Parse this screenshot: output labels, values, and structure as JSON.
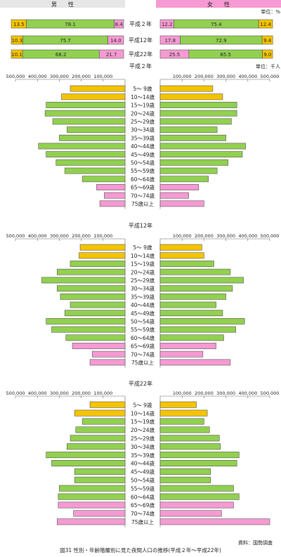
{
  "header": {
    "male_label": "男　　性",
    "female_label": "女　　性",
    "unit_percent": "単位：%",
    "unit_thousand": "単位：千人"
  },
  "colors": {
    "young": "#f5c400",
    "working": "#92d050",
    "elderly": "#f59ad2",
    "male_header": "#e6e6e6",
    "female_header": "#f59ad2",
    "stroke": "#555555"
  },
  "ratio_rows": [
    {
      "year": "平成２年",
      "male": [
        "13.5",
        "78.1",
        "8.4"
      ],
      "female": [
        "12.2",
        "75.4",
        "12.4"
      ]
    },
    {
      "year": "平成12年",
      "male": [
        "10.3",
        "75.7",
        "14.0"
      ],
      "female": [
        "17.8",
        "72.9",
        "9.4"
      ]
    },
    {
      "year": "平成22年",
      "male": [
        "10.1",
        "68.2",
        "21.7"
      ],
      "female": [
        "25.5",
        "65.5",
        "9.0"
      ]
    }
  ],
  "axis": {
    "male_ticks": [
      "500,000",
      "400,000",
      "300,000",
      "200,000",
      "100,000"
    ],
    "female_ticks": [
      "100,000",
      "200,000",
      "300,000",
      "400,000",
      "500,000"
    ]
  },
  "age_groups": [
    "5～ 9歳",
    "10～14歳",
    "15～19歳",
    "20～24歳",
    "25～29歳",
    "30～34歳",
    "35～39歳",
    "40～44歳",
    "45～49歳",
    "50～54歳",
    "55～59歳",
    "60～64歳",
    "65～69歳",
    "70～74歳",
    "75歳以上"
  ],
  "chart_data": [
    {
      "type": "bar",
      "title": "平成２年",
      "categories": [
        "5～ 9歳",
        "10～14歳",
        "15～19歳",
        "20～24歳",
        "25～29歳",
        "30～34歳",
        "35～39歳",
        "40～44歳",
        "45～49歳",
        "50～54歳",
        "55～59歳",
        "60～64歳",
        "65～69歳",
        "70～74歳",
        "75歳以上"
      ],
      "series": [
        {
          "name": "男",
          "values": [
            250000,
            290000,
            360000,
            365000,
            330000,
            265000,
            300000,
            395000,
            360000,
            315000,
            275000,
            195000,
            130000,
            95000,
            115000
          ]
        },
        {
          "name": "女",
          "values": [
            240000,
            285000,
            350000,
            350000,
            325000,
            260000,
            300000,
            390000,
            375000,
            310000,
            260000,
            220000,
            175000,
            130000,
            200000
          ]
        }
      ],
      "xlim": [
        0,
        500000
      ]
    },
    {
      "type": "bar",
      "title": "平成12年",
      "categories": [
        "5～ 9歳",
        "10～14歳",
        "15～19歳",
        "20～24歳",
        "25～29歳",
        "30～34歳",
        "35～39歳",
        "40～44歳",
        "45～49歳",
        "50～54歳",
        "55～59歳",
        "60～64歳",
        "65～69歳",
        "70～74歳",
        "75歳以上"
      ],
      "series": [
        {
          "name": "男",
          "values": [
            205000,
            210000,
            250000,
            310000,
            380000,
            310000,
            295000,
            250000,
            275000,
            360000,
            335000,
            270000,
            240000,
            150000,
            160000
          ]
        },
        {
          "name": "女",
          "values": [
            190000,
            200000,
            245000,
            320000,
            380000,
            330000,
            300000,
            255000,
            285000,
            385000,
            345000,
            290000,
            255000,
            195000,
            320000
          ]
        }
      ],
      "xlim": [
        0,
        500000
      ]
    },
    {
      "type": "bar",
      "title": "平成22年",
      "categories": [
        "5～ 9歳",
        "10～14歳",
        "15～19歳",
        "20～24歳",
        "25～29歳",
        "30～34歳",
        "35～39歳",
        "40～44歳",
        "45～49歳",
        "50～54歳",
        "55～59歳",
        "60～64歳",
        "65～69歳",
        "70～74歳",
        "75歳以上"
      ],
      "series": [
        {
          "name": "男",
          "values": [
            160000,
            230000,
            195000,
            225000,
            250000,
            265000,
            360000,
            335000,
            230000,
            230000,
            300000,
            305000,
            305000,
            235000,
            310000
          ]
        },
        {
          "name": "女",
          "values": [
            165000,
            215000,
            200000,
            225000,
            270000,
            275000,
            360000,
            350000,
            230000,
            230000,
            335000,
            360000,
            335000,
            280000,
            500000
          ]
        }
      ],
      "xlim": [
        0,
        500000
      ]
    }
  ],
  "caption": "図31 性別・年齢階層別に見た夜間人口の推移(平成２年～平成22年)",
  "source": "資料：国勢調査"
}
